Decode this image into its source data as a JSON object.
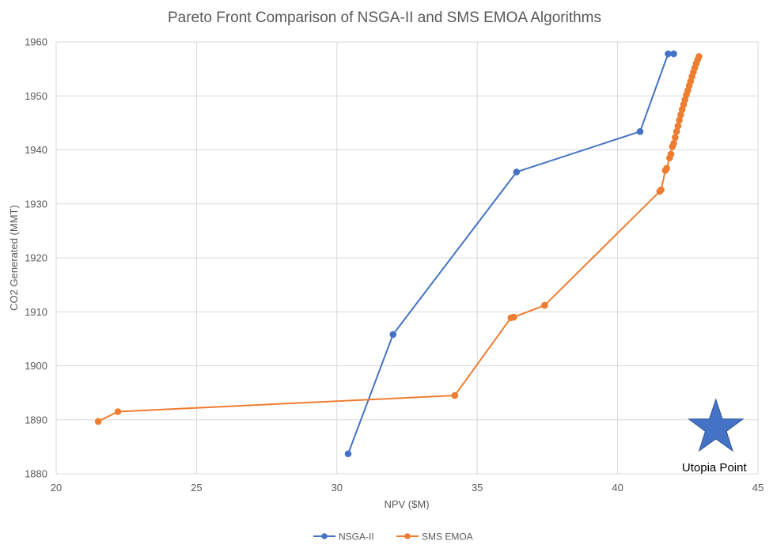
{
  "chart_data": {
    "type": "scatter",
    "title": "Pareto Front Comparison of NSGA-II and SMS EMOA Algorithms",
    "xlabel": "NPV ($M)",
    "ylabel": "CO2 Generated (MMT)",
    "xlim": [
      20,
      45
    ],
    "ylim": [
      1880,
      1960
    ],
    "xticks": [
      20,
      25,
      30,
      35,
      40,
      45
    ],
    "yticks": [
      1880,
      1890,
      1900,
      1910,
      1920,
      1930,
      1940,
      1950,
      1960
    ],
    "grid": true,
    "legend": "bottom",
    "series": [
      {
        "name": "NSGA-II",
        "color": "#4472C4",
        "x": [
          30.4,
          32.0,
          36.4,
          40.8,
          41.8,
          42.0
        ],
        "y": [
          1883.7,
          1905.8,
          1935.9,
          1943.4,
          1957.8,
          1957.8
        ]
      },
      {
        "name": "SMS EMOA",
        "color": "#ED7D31",
        "x": [
          21.5,
          22.2,
          34.2,
          36.2,
          36.3,
          37.4,
          41.5,
          41.55,
          41.7,
          41.75,
          41.85,
          41.9,
          41.95,
          42.0,
          42.05,
          42.1,
          42.15,
          42.2,
          42.25,
          42.3,
          42.35,
          42.4,
          42.45,
          42.5,
          42.55,
          42.6,
          42.65,
          42.7,
          42.75,
          42.8,
          42.85,
          42.9
        ],
        "y": [
          1889.7,
          1891.5,
          1894.5,
          1908.9,
          1909.0,
          1911.2,
          1932.3,
          1932.6,
          1936.2,
          1936.6,
          1938.5,
          1939.2,
          1940.6,
          1941.2,
          1942.3,
          1943.4,
          1944.4,
          1945.5,
          1946.5,
          1947.5,
          1948.4,
          1949.3,
          1950.2,
          1951.0,
          1951.9,
          1952.7,
          1953.6,
          1954.4,
          1955.2,
          1956.0,
          1956.7,
          1957.3
        ]
      }
    ],
    "annotation": {
      "label": "Utopia Point",
      "x": 43.5,
      "y": 1888.5,
      "marker": "star",
      "color": "#4472C4"
    }
  }
}
